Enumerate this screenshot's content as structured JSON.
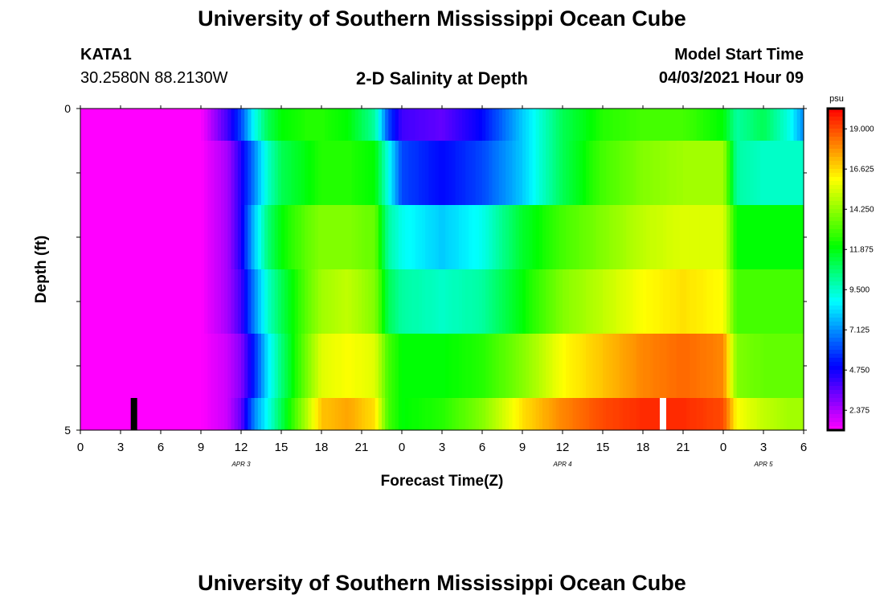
{
  "header": {
    "title": "University of Southern Mississippi Ocean Cube",
    "station": "KATA1",
    "coords": "30.2580N  88.2130W",
    "chart_title": "2-D Salinity at Depth",
    "model_start_label": "Model Start Time",
    "model_start_value": "04/03/2021 Hour 09",
    "footer_title": "University of Southern Mississippi Ocean Cube"
  },
  "chart_data": {
    "type": "heatmap",
    "title": "2-D Salinity at Depth",
    "xlabel": "Forecast Time(Z)",
    "ylabel": "Depth (ft)",
    "x_tick_labels": [
      "0",
      "3",
      "6",
      "9",
      "12",
      "15",
      "18",
      "21",
      "0",
      "3",
      "6",
      "9",
      "12",
      "15",
      "18",
      "21",
      "0",
      "3",
      "6"
    ],
    "date_labels": [
      {
        "label": "APR 3",
        "hour": 12
      },
      {
        "label": "APR 4",
        "hour": 36
      },
      {
        "label": "APR 5",
        "hour": 51
      }
    ],
    "xlim": [
      0,
      54
    ],
    "ylim": [
      0,
      5
    ],
    "y_tick_labels": [
      "0",
      "5"
    ],
    "colorbar": {
      "unit": "psu",
      "range": [
        1.2,
        20.2
      ],
      "tick_labels": [
        "19.000",
        "16.625",
        "14.250",
        "11.875",
        "9.500",
        "7.125",
        "4.750",
        "2.375"
      ]
    },
    "row_depth_bounds": [
      [
        0,
        0.5
      ],
      [
        0.5,
        1.5
      ],
      [
        1.5,
        2.5
      ],
      [
        2.5,
        3.5
      ],
      [
        3.5,
        4.5
      ],
      [
        4.5,
        5
      ]
    ],
    "time_knots": [
      0,
      9,
      11,
      12,
      13,
      14,
      15,
      17,
      18,
      20,
      22,
      23,
      24,
      27,
      30,
      33,
      36,
      39,
      42,
      45,
      48,
      49,
      51,
      53,
      54
    ],
    "rows": [
      [
        1.2,
        1.2,
        4,
        6,
        9,
        11,
        12,
        12.5,
        12.5,
        12,
        10,
        6,
        4,
        3.5,
        5,
        8,
        11,
        12.5,
        13,
        13,
        12,
        10,
        11,
        9,
        7
      ],
      [
        1.2,
        1.2,
        2.5,
        4.5,
        7,
        9.5,
        11,
        12,
        12.5,
        12.5,
        12,
        9,
        6,
        5,
        6,
        8,
        11,
        13,
        14,
        14.5,
        14.5,
        10,
        9.5,
        9.5,
        9.5
      ],
      [
        1.2,
        1.2,
        2.5,
        4.5,
        8,
        10.5,
        12,
        13.5,
        14,
        14,
        13.5,
        10,
        9,
        8,
        9,
        11.5,
        13,
        14,
        15,
        15.5,
        15.5,
        12,
        12,
        12,
        12
      ],
      [
        1.2,
        1.2,
        2.5,
        4,
        7,
        9.5,
        11,
        13.5,
        14.5,
        15,
        14,
        11,
        10,
        9.5,
        10,
        12,
        14,
        15,
        16,
        16.5,
        16,
        13,
        13,
        13,
        13
      ],
      [
        1.2,
        1.2,
        2,
        3,
        5.5,
        8.5,
        10.5,
        14,
        15.5,
        16,
        15.5,
        13,
        12,
        12,
        12.5,
        14,
        16,
        17,
        18,
        18.5,
        18,
        14,
        13.5,
        13.5,
        13.5
      ],
      [
        1.2,
        1.2,
        2,
        3.5,
        7,
        9,
        11,
        15,
        17,
        17.5,
        16.5,
        13,
        12,
        12.5,
        14,
        16.5,
        18,
        19,
        19.5,
        19.5,
        19,
        16,
        15,
        14.5,
        14.5
      ]
    ],
    "markers": [
      {
        "hour": 4,
        "color": "#000000"
      },
      {
        "hour": 43.5,
        "color": "#ffffff"
      }
    ]
  }
}
